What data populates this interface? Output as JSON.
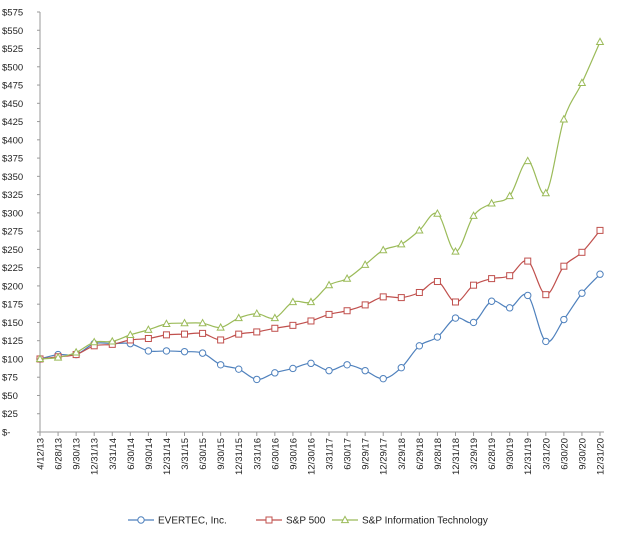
{
  "chart_data": {
    "type": "line",
    "title": "",
    "xlabel": "",
    "ylabel": "",
    "ylim": [
      0,
      575
    ],
    "y_ticks": [
      0,
      25,
      50,
      75,
      100,
      125,
      150,
      175,
      200,
      225,
      250,
      275,
      300,
      325,
      350,
      375,
      400,
      425,
      450,
      475,
      500,
      525,
      550,
      575
    ],
    "y_tick_labels": [
      "$-",
      "$25",
      "$50",
      "$75",
      "$100",
      "$125",
      "$150",
      "$175",
      "$200",
      "$225",
      "$250",
      "$275",
      "$300",
      "$325",
      "$350",
      "$375",
      "$400",
      "$425",
      "$450",
      "$475",
      "$500",
      "$525",
      "$550",
      "$575"
    ],
    "categories": [
      "4/12/13",
      "6/28/13",
      "9/30/13",
      "12/31/13",
      "3/31/14",
      "6/30/14",
      "9/30/14",
      "12/31/14",
      "3/31/15",
      "6/30/15",
      "9/30/15",
      "12/31/15",
      "3/31/16",
      "6/30/16",
      "9/30/16",
      "12/30/16",
      "3/31/17",
      "6/30/17",
      "9/29/17",
      "12/29/17",
      "3/29/18",
      "6/29/18",
      "9/28/18",
      "12/31/18",
      "3/29/19",
      "6/28/19",
      "9/30/19",
      "12/31/19",
      "3/31/20",
      "6/30/20",
      "9/30/20",
      "12/31/20"
    ],
    "legend_position": "bottom",
    "series": [
      {
        "name": "EVERTEC, Inc.",
        "color": "#4f81bd",
        "marker": "circle",
        "values": [
          100,
          106,
          106,
          121,
          121,
          121,
          111,
          111,
          110,
          108,
          92,
          86,
          72,
          81,
          87,
          94,
          84,
          92,
          84,
          73,
          88,
          118,
          130,
          156,
          150,
          179,
          170,
          187,
          124,
          154,
          190,
          216
        ]
      },
      {
        "name": "S&P 500",
        "color": "#c0504d",
        "marker": "square",
        "values": [
          100,
          103,
          106,
          118,
          120,
          126,
          128,
          133,
          134,
          135,
          126,
          134,
          137,
          142,
          146,
          152,
          161,
          166,
          174,
          185,
          184,
          191,
          206,
          178,
          201,
          210,
          214,
          234,
          188,
          227,
          246,
          276
        ]
      },
      {
        "name": "S&P Information Technology",
        "color": "#9bbb59",
        "marker": "triangle",
        "values": [
          100,
          102,
          109,
          123,
          124,
          133,
          140,
          148,
          149,
          149,
          143,
          156,
          162,
          156,
          178,
          178,
          201,
          210,
          229,
          249,
          257,
          276,
          299,
          247,
          296,
          313,
          323,
          371,
          327,
          428,
          478,
          534
        ]
      }
    ]
  }
}
